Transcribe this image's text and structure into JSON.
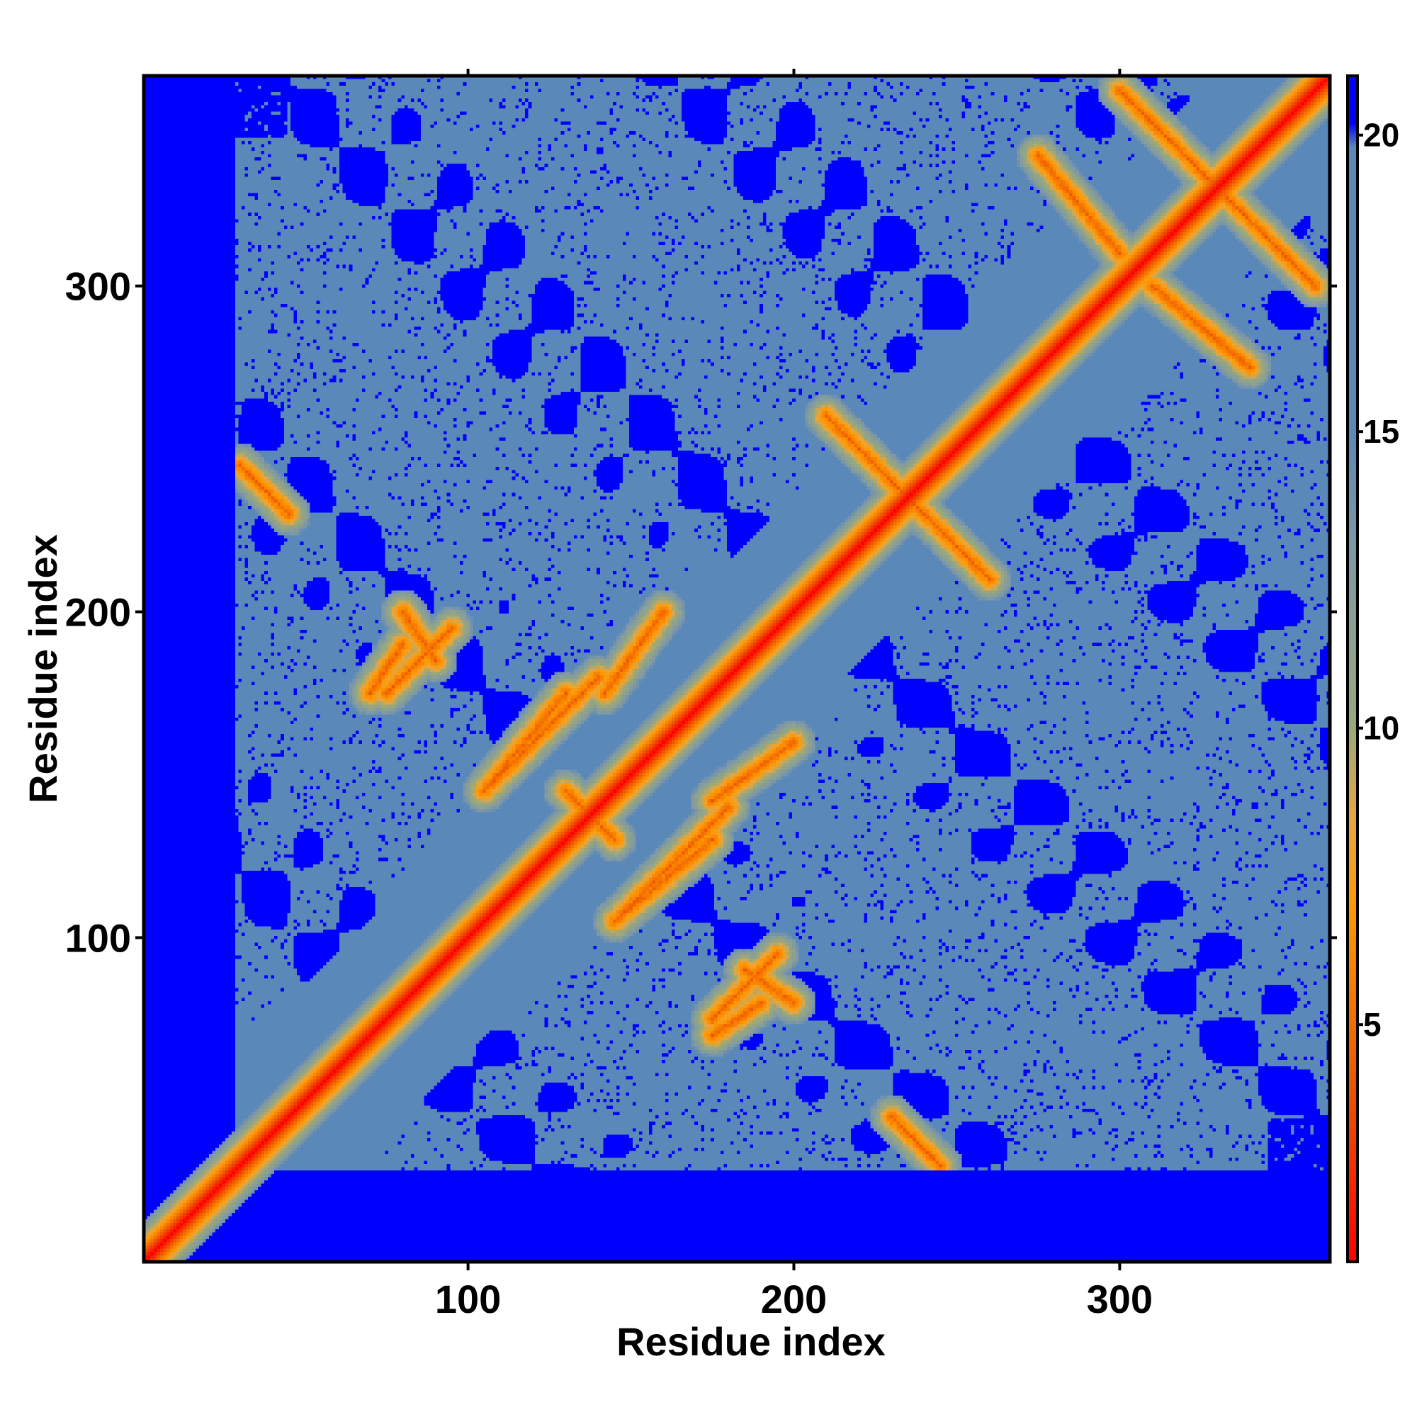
{
  "chart_data": {
    "type": "heatmap",
    "title": "",
    "xlabel": "Residue index",
    "ylabel": "Residue index",
    "xlim": [
      1,
      364
    ],
    "ylim": [
      1,
      364
    ],
    "x_ticks": [
      100,
      200,
      300
    ],
    "y_ticks": [
      100,
      200,
      300
    ],
    "colorbar": {
      "ticks": [
        5,
        10,
        15,
        20
      ],
      "range": [
        1,
        21
      ],
      "stops": [
        {
          "value": 1,
          "color": "#ff0000"
        },
        {
          "value": 4,
          "color": "#ee5500"
        },
        {
          "value": 7,
          "color": "#ff9900"
        },
        {
          "value": 8.5,
          "color": "#e8a640"
        },
        {
          "value": 10,
          "color": "#9aa97a"
        },
        {
          "value": 13,
          "color": "#7f98a6"
        },
        {
          "value": 15,
          "color": "#5a88b8"
        },
        {
          "value": 19.8,
          "color": "#5a88b8"
        },
        {
          "value": 20.2,
          "color": "#0000ff"
        },
        {
          "value": 21,
          "color": "#0000ff"
        }
      ]
    },
    "value_meaning": "pairwise residue distance",
    "diagonal_value": 1,
    "background_value": 21,
    "contact_bands": [
      {
        "type": "antidiagonal",
        "i_range": [
          80,
          90
        ],
        "j_range": [
          200,
          185
        ],
        "value": 5
      },
      {
        "type": "antidiagonal",
        "i_range": [
          70,
          80
        ],
        "j_range": [
          175,
          190
        ],
        "value": 5
      },
      {
        "type": "parallel",
        "i_range": [
          142,
          160
        ],
        "j_range": [
          175,
          200
        ],
        "value": 6
      },
      {
        "type": "parallel",
        "i_range": [
          105,
          130
        ],
        "j_range": [
          145,
          175
        ],
        "value": 6
      },
      {
        "type": "parallel",
        "i_range": [
          145,
          180
        ],
        "j_range": [
          105,
          140
        ],
        "value": 6
      },
      {
        "type": "antidiagonal",
        "i_range": [
          130,
          145
        ],
        "j_range": [
          145,
          130
        ],
        "value": 5
      },
      {
        "type": "antidiagonal",
        "i_range": [
          175,
          195
        ],
        "j_range": [
          75,
          95
        ],
        "value": 5
      },
      {
        "type": "antidiagonal",
        "i_range": [
          30,
          45
        ],
        "j_range": [
          245,
          230
        ],
        "value": 7
      },
      {
        "type": "antidiagonal",
        "i_range": [
          210,
          240
        ],
        "j_range": [
          260,
          230
        ],
        "value": 6
      },
      {
        "type": "antidiagonal",
        "i_range": [
          275,
          300
        ],
        "j_range": [
          340,
          310
        ],
        "value": 6
      },
      {
        "type": "antidiagonal",
        "i_range": [
          300,
          350
        ],
        "j_range": [
          360,
          310
        ],
        "value": 6
      }
    ]
  }
}
